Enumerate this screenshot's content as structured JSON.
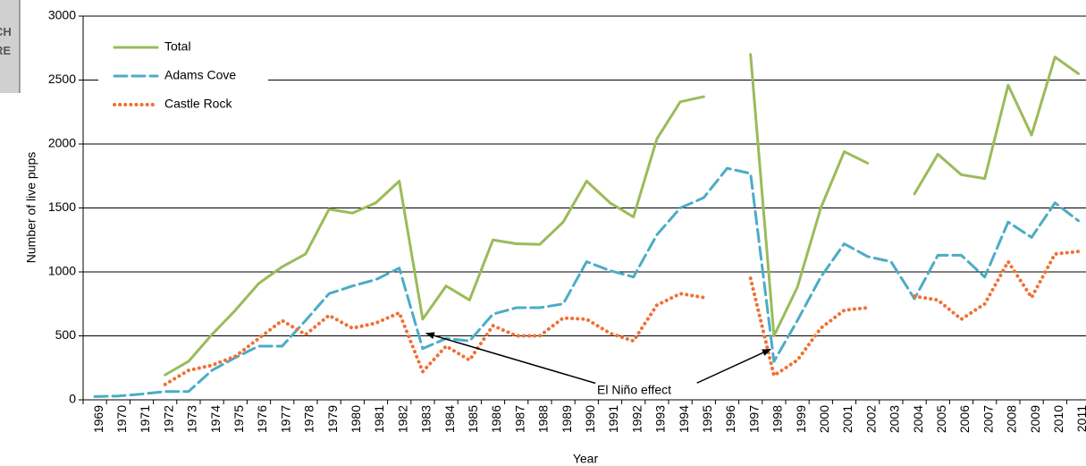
{
  "badge": {
    "lines": [
      "CH",
      "RE"
    ]
  },
  "chart_data": {
    "type": "line",
    "x_label": "Year",
    "y_label": "Number of live pups",
    "categories": [
      "1969",
      "1970",
      "1971",
      "1972",
      "1973",
      "1974",
      "1975",
      "1976",
      "1977",
      "1978",
      "1979",
      "1980",
      "1981",
      "1982",
      "1983",
      "1984",
      "1985",
      "1986",
      "1987",
      "1988",
      "1989",
      "1990",
      "1991",
      "1992",
      "1993",
      "1994",
      "1995",
      "1996",
      "1997",
      "1998",
      "1999",
      "2000",
      "2001",
      "2002",
      "2003",
      "2004",
      "2005",
      "2006",
      "2007",
      "2008",
      "2009",
      "2010",
      "2011"
    ],
    "series": [
      {
        "name": "Total",
        "color": "#9bbb59",
        "style": "solid",
        "values": [
          null,
          null,
          null,
          195,
          300,
          510,
          700,
          910,
          1040,
          1140,
          1490,
          1460,
          1540,
          1710,
          630,
          890,
          780,
          1250,
          1220,
          1215,
          1390,
          1710,
          1540,
          1430,
          2040,
          2330,
          2370,
          null,
          2700,
          500,
          880,
          1500,
          1940,
          1850,
          null,
          1610,
          1920,
          1760,
          1730,
          2460,
          2070,
          2680,
          2550
        ]
      },
      {
        "name": "Adams Cove",
        "color": "#4bacc6",
        "style": "dashed",
        "values": [
          25,
          30,
          45,
          65,
          65,
          230,
          330,
          420,
          420,
          620,
          830,
          890,
          940,
          1030,
          400,
          480,
          460,
          670,
          720,
          720,
          750,
          1080,
          1010,
          960,
          1290,
          1500,
          1580,
          1810,
          1770,
          300,
          620,
          960,
          1220,
          1120,
          1080,
          790,
          1130,
          1130,
          960,
          1390,
          1270,
          1540,
          1400
        ]
      },
      {
        "name": "Castle Rock",
        "color": "#f07035",
        "style": "dotted",
        "values": [
          null,
          null,
          null,
          120,
          230,
          270,
          340,
          480,
          620,
          510,
          660,
          560,
          600,
          680,
          220,
          420,
          310,
          580,
          500,
          500,
          640,
          630,
          520,
          460,
          740,
          830,
          800,
          null,
          950,
          190,
          310,
          560,
          700,
          720,
          null,
          810,
          780,
          630,
          750,
          1080,
          800,
          1140,
          1160
        ]
      }
    ],
    "ylim": [
      0,
      3000
    ],
    "yticks": [
      0,
      500,
      1000,
      1500,
      2000,
      2500,
      3000
    ],
    "grid": true,
    "legend": "upper left",
    "annotation": {
      "text": "El Niño effect"
    }
  }
}
